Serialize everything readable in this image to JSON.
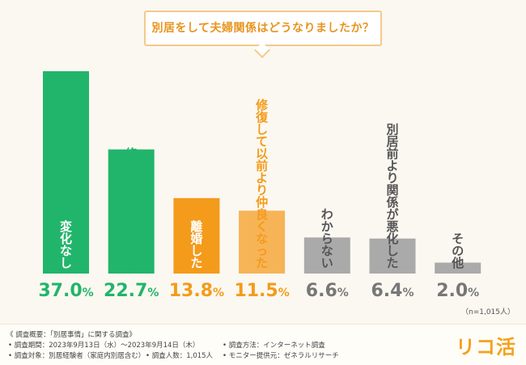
{
  "question": "別居をして夫婦関係はどうなりましたか？",
  "chart_data": {
    "type": "bar",
    "title": "別居をして夫婦関係はどうなりましたか？",
    "unit": "%",
    "ylim": [
      0,
      40
    ],
    "categories": [
      "変化なし",
      "修復して以前に戻った",
      "離婚した",
      "修復して以前より仲良くなった",
      "わからない",
      "別居前より関係が悪化した",
      "その他"
    ],
    "values": [
      37.0,
      22.7,
      13.8,
      11.5,
      6.6,
      6.4,
      2.0
    ],
    "value_labels": [
      "37.0",
      "22.7",
      "13.8",
      "11.5",
      "6.6",
      "6.4",
      "2.0"
    ],
    "colors": [
      "#21b56b",
      "#21b56b",
      "#f49b1b",
      "#f6b457",
      "#aaaaaa",
      "#aaaaaa",
      "#aaaaaa"
    ],
    "label_colors": [
      "#ffffff",
      "#21b56b",
      "#ffffff",
      "#f49b1b",
      "#555555",
      "#555555",
      "#555555"
    ],
    "value_colors": [
      "#21b56b",
      "#21b56b",
      "#f49b1b",
      "#f49b1b",
      "#777777",
      "#777777",
      "#777777"
    ]
  },
  "sample_note": "（n=1,015人）",
  "footer": {
    "title": "《 調査概要：「別居事情」に関する調査》",
    "period": "• 調査期間：2023年9月13日（水）〜2023年9月14日（木）",
    "method": "• 調査方法：インターネット調査",
    "target": "• 調査対象：別居経験者（家庭内別居含む）",
    "count": "• 調査人数：1,015人",
    "provider": "• モニター提供元：ゼネラルリサーチ"
  },
  "logo": "リコ活"
}
